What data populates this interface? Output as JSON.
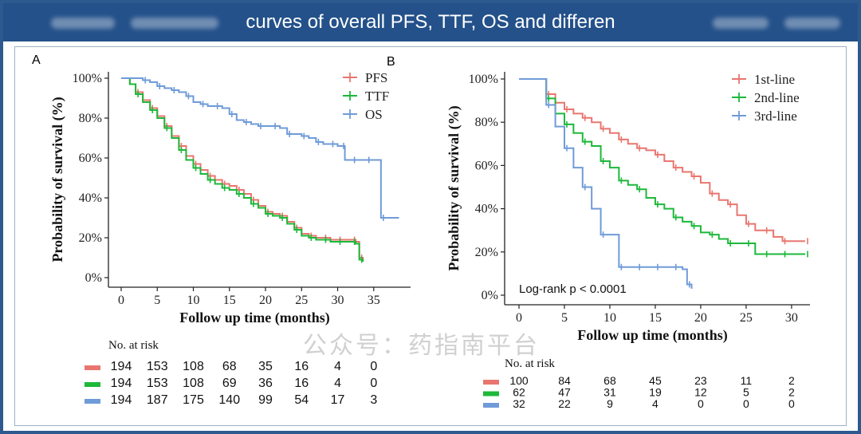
{
  "header": {
    "title": "curves of overall PFS, TTF, OS and differen"
  },
  "watermark": "公众号：药指南平台",
  "colors": {
    "header_bg": "#24518a",
    "frame": "#2d5a8e",
    "red": "#e8766f",
    "green": "#1db83a",
    "blue": "#6f9bd8"
  },
  "chart_data": [
    {
      "type": "line",
      "panel_label": "A",
      "xlabel": "Follow up time (months)",
      "ylabel": "Probability of survival (%)",
      "xlim": [
        0,
        39
      ],
      "ylim": [
        0,
        100
      ],
      "x_ticks": [
        0,
        5,
        10,
        15,
        20,
        25,
        30,
        35
      ],
      "y_ticks": [
        "0%",
        "20%",
        "40%",
        "60%",
        "80%",
        "100%"
      ],
      "legend_position": "top-right",
      "series": [
        {
          "name": "PFS",
          "color": "#e8766f",
          "points": [
            [
              0,
              100
            ],
            [
              1.2,
              97
            ],
            [
              2,
              93
            ],
            [
              3,
              89
            ],
            [
              4,
              85
            ],
            [
              5,
              81
            ],
            [
              6,
              76
            ],
            [
              7,
              71
            ],
            [
              8,
              66
            ],
            [
              9,
              61
            ],
            [
              10,
              57
            ],
            [
              11,
              54
            ],
            [
              12,
              51
            ],
            [
              13,
              49
            ],
            [
              14,
              47
            ],
            [
              15,
              46
            ],
            [
              16,
              44
            ],
            [
              17,
              42
            ],
            [
              18,
              39
            ],
            [
              19,
              36
            ],
            [
              20,
              33
            ],
            [
              21,
              32
            ],
            [
              22,
              31
            ],
            [
              23,
              28
            ],
            [
              24,
              25
            ],
            [
              25,
              22
            ],
            [
              26,
              21
            ],
            [
              27,
              20
            ],
            [
              28,
              20
            ],
            [
              29,
              19
            ],
            [
              30,
              19
            ],
            [
              31,
              19
            ],
            [
              32,
              19
            ],
            [
              32.5,
              18
            ],
            [
              33,
              10
            ],
            [
              33.5,
              9
            ]
          ]
        },
        {
          "name": "TTF",
          "color": "#1db83a",
          "points": [
            [
              0,
              100
            ],
            [
              1.2,
              97
            ],
            [
              2,
              92
            ],
            [
              3,
              88
            ],
            [
              4,
              84
            ],
            [
              5,
              80
            ],
            [
              6,
              75
            ],
            [
              7,
              70
            ],
            [
              8,
              64
            ],
            [
              9,
              59
            ],
            [
              10,
              55
            ],
            [
              11,
              52
            ],
            [
              12,
              49
            ],
            [
              13,
              47
            ],
            [
              14,
              45
            ],
            [
              15,
              44
            ],
            [
              16,
              42
            ],
            [
              17,
              40
            ],
            [
              18,
              37
            ],
            [
              19,
              35
            ],
            [
              20,
              32
            ],
            [
              21,
              31
            ],
            [
              22,
              30
            ],
            [
              23,
              27
            ],
            [
              24,
              24
            ],
            [
              25,
              21
            ],
            [
              26,
              20
            ],
            [
              27,
              19
            ],
            [
              28,
              19
            ],
            [
              29,
              18
            ],
            [
              30,
              18
            ],
            [
              31,
              18
            ],
            [
              32,
              18
            ],
            [
              32.5,
              17
            ],
            [
              33,
              9
            ],
            [
              33.5,
              8
            ]
          ]
        },
        {
          "name": "OS",
          "color": "#6f9bd8",
          "points": [
            [
              0,
              100
            ],
            [
              2,
              100
            ],
            [
              3,
              99
            ],
            [
              4,
              98
            ],
            [
              5,
              96
            ],
            [
              6,
              95
            ],
            [
              7,
              94
            ],
            [
              8,
              93
            ],
            [
              9,
              91
            ],
            [
              10,
              88
            ],
            [
              11,
              87
            ],
            [
              12,
              86
            ],
            [
              13,
              86
            ],
            [
              14,
              85
            ],
            [
              15,
              82
            ],
            [
              16,
              79
            ],
            [
              17,
              78
            ],
            [
              18,
              77
            ],
            [
              19,
              76
            ],
            [
              20,
              76
            ],
            [
              21,
              76
            ],
            [
              22,
              75
            ],
            [
              23,
              72
            ],
            [
              24,
              72
            ],
            [
              25,
              71
            ],
            [
              26,
              70
            ],
            [
              27,
              68
            ],
            [
              28,
              67
            ],
            [
              29,
              67
            ],
            [
              30,
              66
            ],
            [
              30.5,
              66
            ],
            [
              31,
              59
            ],
            [
              32,
              59
            ],
            [
              33,
              59
            ],
            [
              34,
              59
            ],
            [
              35,
              59
            ],
            [
              36,
              30
            ],
            [
              38.5,
              30
            ]
          ]
        }
      ],
      "risk_table": {
        "title": "No. at risk",
        "rows": [
          {
            "color": "#e8766f",
            "values": [
              "194",
              "153",
              "108",
              "68",
              "35",
              "16",
              "4",
              "0"
            ]
          },
          {
            "color": "#1db83a",
            "values": [
              "194",
              "153",
              "108",
              "69",
              "36",
              "16",
              "4",
              "0"
            ]
          },
          {
            "color": "#6f9bd8",
            "values": [
              "194",
              "187",
              "175",
              "140",
              "99",
              "54",
              "17",
              "3"
            ]
          }
        ]
      }
    },
    {
      "type": "line",
      "panel_label": "B",
      "xlabel": "Follow up time (months)",
      "ylabel": "Probability of survival (%)",
      "xlim": [
        0,
        31.5
      ],
      "ylim": [
        0,
        100
      ],
      "x_ticks": [
        0,
        5,
        10,
        15,
        20,
        25,
        30
      ],
      "y_ticks": [
        "0%",
        "20%",
        "40%",
        "60%",
        "80%",
        "100%"
      ],
      "legend_position": "top-right",
      "annotation": "Log-rank    p < 0.0001",
      "series": [
        {
          "name": "1st-line",
          "color": "#e8766f",
          "points": [
            [
              0,
              100
            ],
            [
              2,
              100
            ],
            [
              3,
              93
            ],
            [
              4,
              89
            ],
            [
              5,
              86
            ],
            [
              6,
              84
            ],
            [
              7,
              82
            ],
            [
              8,
              80
            ],
            [
              9,
              77
            ],
            [
              10,
              75
            ],
            [
              11,
              72
            ],
            [
              12,
              70
            ],
            [
              13,
              68
            ],
            [
              14,
              67
            ],
            [
              15,
              65
            ],
            [
              16,
              62
            ],
            [
              17,
              59
            ],
            [
              18,
              57
            ],
            [
              19,
              55
            ],
            [
              20,
              52
            ],
            [
              21,
              47
            ],
            [
              22,
              44
            ],
            [
              23,
              42
            ],
            [
              24,
              37
            ],
            [
              25,
              33
            ],
            [
              26,
              30
            ],
            [
              27,
              30
            ],
            [
              28,
              27
            ],
            [
              29,
              25
            ],
            [
              30,
              25
            ],
            [
              31.5,
              25
            ]
          ]
        },
        {
          "name": "2nd-line",
          "color": "#1db83a",
          "points": [
            [
              0,
              100
            ],
            [
              2,
              100
            ],
            [
              3,
              91
            ],
            [
              4,
              84
            ],
            [
              5,
              79
            ],
            [
              6,
              75
            ],
            [
              7,
              71
            ],
            [
              8,
              69
            ],
            [
              9,
              62
            ],
            [
              10,
              59
            ],
            [
              11,
              53
            ],
            [
              12,
              51
            ],
            [
              13,
              49
            ],
            [
              14,
              45
            ],
            [
              15,
              42
            ],
            [
              16,
              40
            ],
            [
              17,
              36
            ],
            [
              18,
              34
            ],
            [
              19,
              32
            ],
            [
              20,
              29
            ],
            [
              21,
              28
            ],
            [
              22,
              26
            ],
            [
              23,
              24
            ],
            [
              24,
              24
            ],
            [
              25,
              24
            ],
            [
              26,
              19
            ],
            [
              27,
              19
            ],
            [
              28,
              19
            ],
            [
              29,
              19
            ],
            [
              30,
              19
            ],
            [
              31.5,
              19
            ]
          ]
        },
        {
          "name": "3rd-line",
          "color": "#6f9bd8",
          "points": [
            [
              0,
              100
            ],
            [
              2,
              100
            ],
            [
              3,
              88
            ],
            [
              4,
              78
            ],
            [
              5,
              68
            ],
            [
              6,
              59
            ],
            [
              7,
              50
            ],
            [
              8,
              40
            ],
            [
              9,
              28
            ],
            [
              10,
              28
            ],
            [
              11,
              13
            ],
            [
              12,
              13
            ],
            [
              13,
              13
            ],
            [
              14,
              13
            ],
            [
              15,
              13
            ],
            [
              16,
              13
            ],
            [
              17,
              13
            ],
            [
              18,
              12
            ],
            [
              18.5,
              5
            ],
            [
              19,
              3
            ]
          ]
        }
      ],
      "risk_table": {
        "title": "No. at risk",
        "rows": [
          {
            "color": "#e8766f",
            "values": [
              "100",
              "84",
              "68",
              "45",
              "23",
              "11",
              "2"
            ]
          },
          {
            "color": "#1db83a",
            "values": [
              "62",
              "47",
              "31",
              "19",
              "12",
              "5",
              "2"
            ]
          },
          {
            "color": "#6f9bd8",
            "values": [
              "32",
              "22",
              "9",
              "4",
              "0",
              "0",
              "0"
            ]
          }
        ]
      }
    }
  ]
}
